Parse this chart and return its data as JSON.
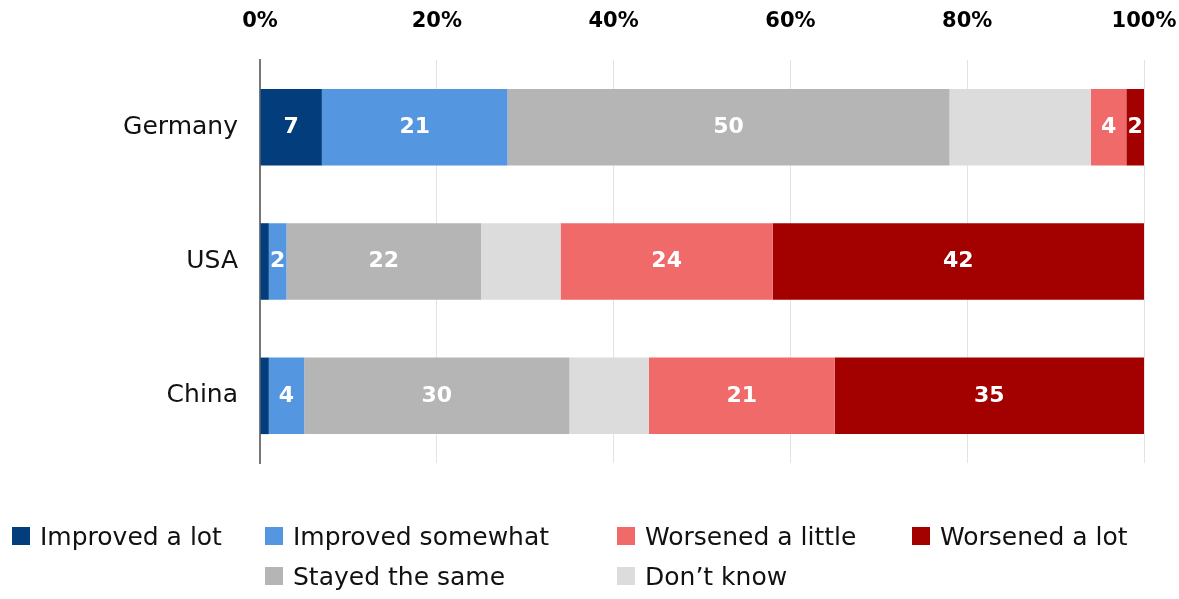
{
  "chart_data": {
    "type": "bar",
    "orientation": "horizontal",
    "stacked": true,
    "categories": [
      "Germany",
      "USA",
      "China"
    ],
    "series": [
      {
        "name": "Improved a lot",
        "color": "#033d7c",
        "values": [
          7,
          1,
          1
        ],
        "value_labels": [
          "7",
          null,
          null
        ]
      },
      {
        "name": "Improved somewhat",
        "color": "#5596e0",
        "values": [
          21,
          2,
          4
        ],
        "value_labels": [
          "21",
          "2",
          "4"
        ]
      },
      {
        "name": "Stayed the same",
        "color": "#b5b5b5",
        "values": [
          50,
          22,
          30
        ],
        "value_labels": [
          "50",
          "22",
          "30"
        ]
      },
      {
        "name": "Don’t know",
        "color": "#dcdcdc",
        "values": [
          16,
          9,
          9
        ]
      },
      {
        "name": "Worsened a little",
        "color": "#f06a6a",
        "values": [
          4,
          24,
          21
        ],
        "value_labels": [
          "4",
          "24",
          "21"
        ]
      },
      {
        "name": "Worsened a lot",
        "color": "#a30000",
        "values": [
          2,
          42,
          35
        ],
        "value_labels": [
          "2",
          "42",
          "35"
        ]
      }
    ],
    "xlim": [
      0,
      100
    ],
    "xticks": [
      {
        "value": 0,
        "label": "0%"
      },
      {
        "value": 20,
        "label": "20%"
      },
      {
        "value": 40,
        "label": "40%"
      },
      {
        "value": 60,
        "label": "60%"
      },
      {
        "value": 80,
        "label": "80%"
      },
      {
        "value": 100,
        "label": "100%"
      }
    ],
    "grid": "x",
    "legend": "bottom"
  }
}
